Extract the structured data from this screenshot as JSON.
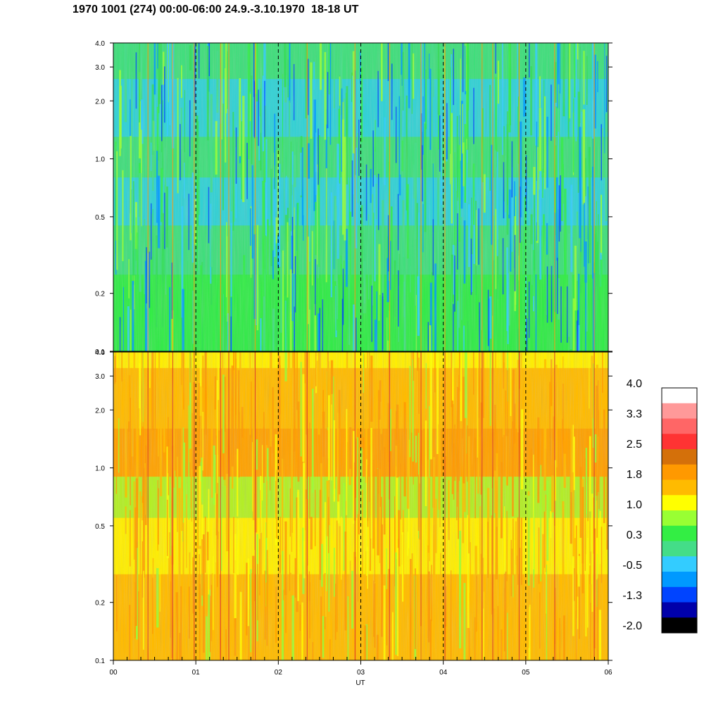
{
  "title": "1970 1001 (274) 00:00-06:00 24.9.-3.10.1970  18-18 UT",
  "chart_data": [
    {
      "type": "heatmap",
      "panel": "top",
      "x_ticks": [
        "00",
        "01",
        "02",
        "03",
        "04",
        "05",
        "06"
      ],
      "x_range": [
        0,
        6
      ],
      "y_scale": "log",
      "y_range": [
        0.1,
        4.0
      ],
      "y_ticks": [
        "0.1",
        "0.2",
        "0.5",
        "1.0",
        "2.0",
        "3.0",
        "4.0"
      ],
      "dashed_vertical_lines_at": [
        1,
        2,
        3,
        4,
        5
      ],
      "dominant_value_range": [
        -1.3,
        1.0
      ]
    },
    {
      "type": "heatmap",
      "panel": "bottom",
      "x_ticks": [
        "00",
        "01",
        "02",
        "03",
        "04",
        "05",
        "06"
      ],
      "x_range": [
        0,
        6
      ],
      "x_label": "UT",
      "y_scale": "log",
      "y_range": [
        0.1,
        4.0
      ],
      "y_ticks": [
        "0.1",
        "0.2",
        "0.5",
        "1.0",
        "2.0",
        "3.0",
        "4.0"
      ],
      "dashed_vertical_lines_at": [
        1,
        2,
        3,
        4,
        5
      ],
      "dominant_value_range": [
        0.3,
        2.5
      ]
    }
  ],
  "colorbar": {
    "labels": [
      "4.0",
      "3.3",
      "2.5",
      "1.8",
      "1.0",
      "0.3",
      "-0.5",
      "-1.3",
      "-2.0"
    ],
    "colors_top_to_bottom": [
      "#ffffff",
      "#ff9999",
      "#ff6666",
      "#ff3333",
      "#d4700a",
      "#ff9900",
      "#ffbb00",
      "#ffff00",
      "#99ff33",
      "#33ee44",
      "#44dd88",
      "#33ccff",
      "#0099ff",
      "#0044ff",
      "#0000aa",
      "#000000"
    ]
  }
}
